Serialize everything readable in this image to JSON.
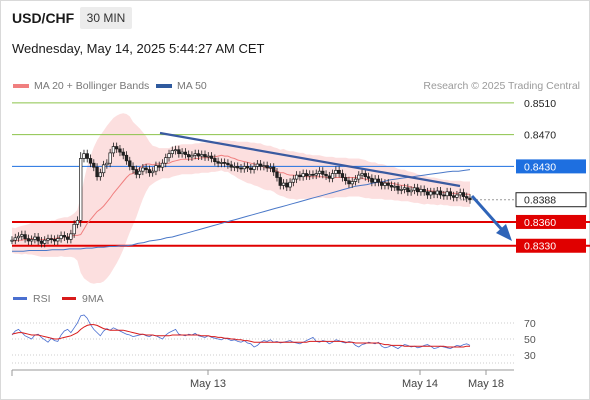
{
  "header": {
    "symbol": "USD/CHF",
    "timeframe": "30 MIN",
    "datetime": "Wednesday, May 14, 2025 5:44:27 AM CET"
  },
  "legend": {
    "ma20_label": "MA 20 + Bollinger Bands",
    "ma50_label": "MA 50",
    "credit": "Research © 2025 Trading Central",
    "ma20_color": "#f07f7f",
    "ma50_color": "#2f5a9e"
  },
  "rsi_legend": {
    "rsi_label": "RSI",
    "ma9_label": "9MA",
    "rsi_color": "#4a6fd0",
    "ma9_color": "#d81b1b"
  },
  "chart_data": [
    {
      "type": "candlestick",
      "title": "",
      "xlabel": "",
      "ylabel": "",
      "ylim": [
        0.8307,
        0.8525
      ],
      "x_ticks": [
        "May 13",
        "May 14",
        "May 18"
      ],
      "grid": false,
      "legend_position": "top-left",
      "levels": [
        {
          "label": "0.8510",
          "value": 0.851,
          "kind": "resistance",
          "color": "#8bc34a"
        },
        {
          "label": "0.8470",
          "value": 0.847,
          "kind": "resistance",
          "color": "#8bc34a"
        },
        {
          "label": "0.8430",
          "value": 0.843,
          "kind": "pivot",
          "color": "#1e6fe0"
        },
        {
          "label": "0.8388",
          "value": 0.8388,
          "kind": "last",
          "color": "#333333"
        },
        {
          "label": "0.8360",
          "value": 0.836,
          "kind": "support",
          "color": "#e00000"
        },
        {
          "label": "0.8330",
          "value": 0.833,
          "kind": "support",
          "color": "#e00000"
        }
      ],
      "close": [
        0.8337,
        0.834,
        0.8342,
        0.8344,
        0.8339,
        0.8336,
        0.8338,
        0.8341,
        0.8336,
        0.8333,
        0.8337,
        0.8339,
        0.8338,
        0.8336,
        0.8339,
        0.8343,
        0.8341,
        0.8338,
        0.8345,
        0.8357,
        0.8362,
        0.844,
        0.8446,
        0.844,
        0.8434,
        0.8429,
        0.8417,
        0.8422,
        0.8432,
        0.8434,
        0.8447,
        0.8455,
        0.8452,
        0.8448,
        0.8444,
        0.8437,
        0.843,
        0.8426,
        0.842,
        0.8424,
        0.8428,
        0.8426,
        0.8422,
        0.8424,
        0.8431,
        0.8429,
        0.8434,
        0.8441,
        0.8446,
        0.845,
        0.8451,
        0.8446,
        0.8448,
        0.8445,
        0.8442,
        0.8444,
        0.8446,
        0.8443,
        0.8445,
        0.8442,
        0.8443,
        0.844,
        0.8436,
        0.8434,
        0.8435,
        0.8434,
        0.8432,
        0.8429,
        0.843,
        0.8428,
        0.8427,
        0.843,
        0.8428,
        0.8426,
        0.843,
        0.8433,
        0.843,
        0.8431,
        0.8428,
        0.8429,
        0.8423,
        0.8416,
        0.8406,
        0.8409,
        0.8404,
        0.841,
        0.8414,
        0.8419,
        0.8417,
        0.8421,
        0.8418,
        0.842,
        0.8419,
        0.8421,
        0.8424,
        0.842,
        0.8418,
        0.8415,
        0.8421,
        0.8425,
        0.8421,
        0.8416,
        0.8412,
        0.8408,
        0.8411,
        0.8414,
        0.8419,
        0.8421,
        0.8417,
        0.8415,
        0.841,
        0.8414,
        0.841,
        0.8406,
        0.8409,
        0.8406,
        0.8404,
        0.8405,
        0.84,
        0.8401,
        0.8403,
        0.8398,
        0.84,
        0.8403,
        0.8398,
        0.8401,
        0.8398,
        0.8394,
        0.8398,
        0.8395,
        0.8399,
        0.8394,
        0.8393,
        0.8398,
        0.8393,
        0.8391,
        0.8394,
        0.8397,
        0.8392,
        0.839,
        0.8388
      ],
      "series": [
        {
          "name": "MA 20 + Bollinger Bands",
          "values": [
            0.8337,
            0.8336,
            0.8337,
            0.8337,
            0.8338,
            0.8338,
            0.8339,
            0.8339,
            0.8338,
            0.8338,
            0.8338,
            0.8338,
            0.8339,
            0.8339,
            0.834,
            0.8341,
            0.8341,
            0.8341,
            0.8342,
            0.8343,
            0.8343,
            0.8344,
            0.8351,
            0.8358,
            0.8363,
            0.8368,
            0.8373,
            0.8376,
            0.838,
            0.8385,
            0.839,
            0.8396,
            0.8401,
            0.8406,
            0.8411,
            0.8416,
            0.842,
            0.8421,
            0.8424,
            0.8428,
            0.8431,
            0.8433,
            0.8433,
            0.8432,
            0.8433,
            0.8433,
            0.8434,
            0.8434,
            0.8434,
            0.8436,
            0.8437,
            0.8438,
            0.8439,
            0.8439,
            0.8439,
            0.8439,
            0.844,
            0.844,
            0.8441,
            0.8441,
            0.8441,
            0.8442,
            0.8442,
            0.8443,
            0.8444,
            0.8443,
            0.8443,
            0.8441,
            0.844,
            0.8438,
            0.8437,
            0.8436,
            0.8435,
            0.8434,
            0.8433,
            0.8432,
            0.8431,
            0.8429,
            0.8428,
            0.8428,
            0.8426,
            0.8424,
            0.8422,
            0.8422,
            0.842,
            0.8419,
            0.8419,
            0.8418,
            0.8418,
            0.8418,
            0.8417,
            0.8417,
            0.8417,
            0.8417,
            0.8417,
            0.8417,
            0.8416,
            0.8416,
            0.8416,
            0.8416,
            0.8416,
            0.8416,
            0.8416,
            0.8416,
            0.8416,
            0.8416,
            0.8416,
            0.8415,
            0.8414,
            0.8413,
            0.8412,
            0.8412,
            0.8411,
            0.8411,
            0.841,
            0.8409,
            0.8409,
            0.8408,
            0.8407,
            0.8406,
            0.8406,
            0.8405,
            0.8404,
            0.8403,
            0.8402,
            0.8401,
            0.84,
            0.84,
            0.8399,
            0.8399,
            0.8398,
            0.8398,
            0.8397,
            0.8397,
            0.8396,
            0.8396,
            0.8396,
            0.8396,
            0.8395,
            0.8395,
            0.8395
          ]
        },
        {
          "name": "MA 50",
          "values": [
            0.8323,
            0.8323,
            0.8323,
            0.8324,
            0.8324,
            0.8324,
            0.8324,
            0.8325,
            0.8325,
            0.8325,
            0.8326,
            0.8326,
            0.8326,
            0.8327,
            0.8327,
            0.8328,
            0.8328,
            0.8329,
            0.8329,
            0.833,
            0.833,
            0.8331,
            0.8333,
            0.8334,
            0.8336,
            0.8337,
            0.8338,
            0.834,
            0.8341,
            0.8343,
            0.8345,
            0.8347,
            0.8349,
            0.8351,
            0.8353,
            0.8355,
            0.8357,
            0.8359,
            0.8361,
            0.8363,
            0.8365,
            0.8367,
            0.8369,
            0.8371,
            0.8373,
            0.8375,
            0.8377,
            0.8379,
            0.8381,
            0.8383,
            0.8385,
            0.8387,
            0.8389,
            0.8391,
            0.8393,
            0.8395,
            0.8397,
            0.8399,
            0.8401,
            0.8403,
            0.8405,
            0.8406,
            0.8407,
            0.8409,
            0.841,
            0.8411,
            0.8413,
            0.8414,
            0.8415,
            0.8416,
            0.8417,
            0.8418,
            0.8419,
            0.842,
            0.8421,
            0.8422,
            0.8423,
            0.8424,
            0.8424,
            0.8425,
            0.8426
          ]
        }
      ],
      "bollinger_width": [
        0.0016,
        0.0016,
        0.0017,
        0.0018,
        0.0018,
        0.0019,
        0.002,
        0.0021,
        0.0021,
        0.0022,
        0.0022,
        0.0022,
        0.0023,
        0.0023,
        0.0024,
        0.0024,
        0.0025,
        0.0025,
        0.0026,
        0.0028,
        0.0032,
        0.0048,
        0.0062,
        0.0072,
        0.008,
        0.0086,
        0.009,
        0.0093,
        0.0095,
        0.0096,
        0.0096,
        0.0095,
        0.0093,
        0.009,
        0.0086,
        0.008,
        0.0073,
        0.0065,
        0.0058,
        0.005,
        0.0042,
        0.0035,
        0.0028,
        0.0024,
        0.0022,
        0.002,
        0.0019,
        0.0019,
        0.0019,
        0.0019,
        0.0019,
        0.0019,
        0.0019,
        0.0019,
        0.0019,
        0.0019,
        0.0019,
        0.0019,
        0.0019,
        0.0019,
        0.0019,
        0.0019,
        0.0019,
        0.0019,
        0.0019,
        0.002,
        0.002,
        0.0021,
        0.0022,
        0.0023,
        0.0024,
        0.0025,
        0.0026,
        0.0026,
        0.0027,
        0.0027,
        0.0028,
        0.0028,
        0.0028,
        0.0028,
        0.0028,
        0.0029,
        0.0029,
        0.003,
        0.003,
        0.003,
        0.003,
        0.003,
        0.0029,
        0.0029,
        0.0028,
        0.0028,
        0.0027,
        0.0027,
        0.0027,
        0.0026,
        0.0026,
        0.0026,
        0.0026,
        0.0025,
        0.0025,
        0.0025,
        0.0025,
        0.0024,
        0.0024,
        0.0024,
        0.0024,
        0.0024,
        0.0024,
        0.0023,
        0.0023,
        0.0023,
        0.0022,
        0.0022,
        0.0022,
        0.0021,
        0.0021,
        0.0021,
        0.002,
        0.002,
        0.002,
        0.0019,
        0.0019,
        0.0019,
        0.0018,
        0.0018,
        0.0018,
        0.0017,
        0.0017,
        0.0017,
        0.0017,
        0.0016,
        0.0016,
        0.0016,
        0.0016,
        0.0016,
        0.0016,
        0.0016,
        0.0016,
        0.0016,
        0.0016
      ]
    },
    {
      "type": "line",
      "title": "",
      "xlabel": "",
      "ylabel": "",
      "ylim": [
        20,
        80
      ],
      "y_ticks": [
        70,
        50,
        30
      ],
      "grid": true,
      "series": [
        {
          "name": "RSI",
          "values": [
            55,
            60,
            62,
            58,
            54,
            52,
            50,
            55,
            56,
            52,
            49,
            46,
            51,
            48,
            47,
            55,
            60,
            62,
            58,
            64,
            70,
            79,
            80,
            76,
            68,
            62,
            58,
            54,
            60,
            63,
            61,
            64,
            62,
            60,
            58,
            56,
            55,
            53,
            54,
            55,
            56,
            54,
            53,
            55,
            54,
            52,
            50,
            55,
            58,
            60,
            62,
            56,
            55,
            54,
            56,
            55,
            57,
            54,
            53,
            52,
            54,
            52,
            51,
            50,
            49,
            51,
            50,
            48,
            49,
            47,
            46,
            48,
            45,
            44,
            40,
            42,
            46,
            48,
            47,
            49,
            46,
            47,
            45,
            46,
            47,
            48,
            46,
            45,
            44,
            46,
            48,
            50,
            52,
            47,
            46,
            48,
            47,
            44,
            46,
            49,
            48,
            46,
            45,
            47,
            46,
            42,
            40,
            43,
            44,
            46,
            45,
            44,
            46,
            41,
            39,
            40,
            42,
            40,
            38,
            41,
            43,
            42,
            40,
            41,
            39,
            40,
            42,
            43,
            41,
            38,
            39,
            41,
            40,
            39,
            38,
            40,
            42,
            41,
            43,
            44,
            42
          ]
        },
        {
          "name": "9MA",
          "values": [
            56,
            57,
            58,
            58,
            57,
            56,
            55,
            55,
            55,
            54,
            53,
            52,
            51,
            50,
            50,
            51,
            52,
            53,
            54,
            56,
            58,
            62,
            65,
            67,
            68,
            68,
            67,
            65,
            63,
            62,
            61,
            61,
            61,
            61,
            61,
            60,
            59,
            58,
            57,
            56,
            56,
            55,
            55,
            55,
            54,
            54,
            54,
            54,
            54,
            55,
            55,
            55,
            55,
            55,
            55,
            55,
            55,
            55,
            54,
            54,
            54,
            53,
            53,
            52,
            52,
            51,
            51,
            50,
            50,
            49,
            49,
            48,
            48,
            47,
            46,
            46,
            46,
            46,
            46,
            46,
            46,
            46,
            46,
            46,
            46,
            46,
            46,
            46,
            46,
            46,
            46,
            47,
            47,
            47,
            47,
            47,
            47,
            47,
            47,
            47,
            47,
            47,
            46,
            46,
            46,
            45,
            45,
            45,
            45,
            45,
            45,
            45,
            45,
            44,
            43,
            43,
            42,
            42,
            42,
            42,
            41,
            41,
            41,
            41,
            41,
            41,
            41,
            41,
            41,
            41,
            41,
            41,
            41,
            40,
            40,
            40,
            40,
            40,
            40,
            41,
            41
          ]
        }
      ]
    }
  ]
}
